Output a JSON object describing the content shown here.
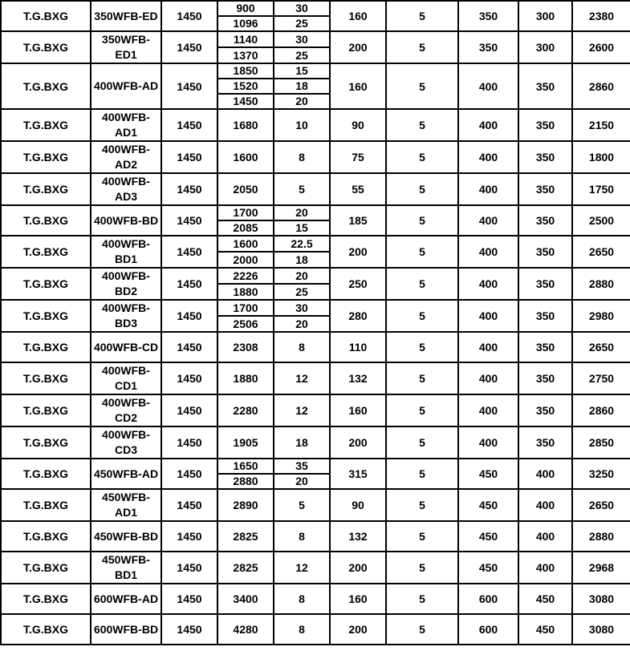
{
  "table": {
    "rows": [
      {
        "brand": "T.G.BXG",
        "model": "350WFB-ED",
        "speed": "1450",
        "flow_head": [
          [
            "900",
            "30"
          ],
          [
            "1096",
            "25"
          ]
        ],
        "power": "160",
        "col6": "5",
        "col7": "350",
        "col8": "300",
        "col9": "2380"
      },
      {
        "brand": "T.G.BXG",
        "model": "350WFB-ED1",
        "speed": "1450",
        "flow_head": [
          [
            "1140",
            "30"
          ],
          [
            "1370",
            "25"
          ]
        ],
        "power": "200",
        "col6": "5",
        "col7": "350",
        "col8": "300",
        "col9": "2600"
      },
      {
        "brand": "T.G.BXG",
        "model": "400WFB-AD",
        "speed": "1450",
        "flow_head": [
          [
            "1850",
            "15"
          ],
          [
            "1520",
            "18"
          ],
          [
            "1450",
            "20"
          ]
        ],
        "power": "160",
        "col6": "5",
        "col7": "400",
        "col8": "350",
        "col9": "2860"
      },
      {
        "brand": "T.G.BXG",
        "model": "400WFB-AD1",
        "speed": "1450",
        "flow_head": [
          [
            "1680",
            "10"
          ]
        ],
        "power": "90",
        "col6": "5",
        "col7": "400",
        "col8": "350",
        "col9": "2150"
      },
      {
        "brand": "T.G.BXG",
        "model": "400WFB-AD2",
        "speed": "1450",
        "flow_head": [
          [
            "1600",
            "8"
          ]
        ],
        "power": "75",
        "col6": "5",
        "col7": "400",
        "col8": "350",
        "col9": "1800"
      },
      {
        "brand": "T.G.BXG",
        "model": "400WFB-AD3",
        "speed": "1450",
        "flow_head": [
          [
            "2050",
            "5"
          ]
        ],
        "power": "55",
        "col6": "5",
        "col7": "400",
        "col8": "350",
        "col9": "1750"
      },
      {
        "brand": "T.G.BXG",
        "model": "400WFB-BD",
        "speed": "1450",
        "flow_head": [
          [
            "1700",
            "20"
          ],
          [
            "2085",
            "15"
          ]
        ],
        "power": "185",
        "col6": "5",
        "col7": "400",
        "col8": "350",
        "col9": "2500"
      },
      {
        "brand": "T.G.BXG",
        "model": "400WFB-BD1",
        "speed": "1450",
        "flow_head": [
          [
            "1600",
            "22.5"
          ],
          [
            "2000",
            "18"
          ]
        ],
        "power": "200",
        "col6": "5",
        "col7": "400",
        "col8": "350",
        "col9": "2650"
      },
      {
        "brand": "T.G.BXG",
        "model": "400WFB-BD2",
        "speed": "1450",
        "flow_head": [
          [
            "2226",
            "20"
          ],
          [
            "1880",
            "25"
          ]
        ],
        "power": "250",
        "col6": "5",
        "col7": "400",
        "col8": "350",
        "col9": "2880"
      },
      {
        "brand": "T.G.BXG",
        "model": "400WFB-BD3",
        "speed": "1450",
        "flow_head": [
          [
            "1700",
            "30"
          ],
          [
            "2506",
            "20"
          ]
        ],
        "power": "280",
        "col6": "5",
        "col7": "400",
        "col8": "350",
        "col9": "2980"
      },
      {
        "brand": "T.G.BXG",
        "model": "400WFB-CD",
        "speed": "1450",
        "flow_head": [
          [
            "2308",
            "8"
          ]
        ],
        "power": "110",
        "col6": "5",
        "col7": "400",
        "col8": "350",
        "col9": "2650"
      },
      {
        "brand": "T.G.BXG",
        "model": "400WFB-CD1",
        "speed": "1450",
        "flow_head": [
          [
            "1880",
            "12"
          ]
        ],
        "power": "132",
        "col6": "5",
        "col7": "400",
        "col8": "350",
        "col9": "2750"
      },
      {
        "brand": "T.G.BXG",
        "model": "400WFB-CD2",
        "speed": "1450",
        "flow_head": [
          [
            "2280",
            "12"
          ]
        ],
        "power": "160",
        "col6": "5",
        "col7": "400",
        "col8": "350",
        "col9": "2860"
      },
      {
        "brand": "T.G.BXG",
        "model": "400WFB-CD3",
        "speed": "1450",
        "flow_head": [
          [
            "1905",
            "18"
          ]
        ],
        "power": "200",
        "col6": "5",
        "col7": "400",
        "col8": "350",
        "col9": "2850"
      },
      {
        "brand": "T.G.BXG",
        "model": "450WFB-AD",
        "speed": "1450",
        "flow_head": [
          [
            "1650",
            "35"
          ],
          [
            "2880",
            "20"
          ]
        ],
        "power": "315",
        "col6": "5",
        "col7": "450",
        "col8": "400",
        "col9": "3250"
      },
      {
        "brand": "T.G.BXG",
        "model": "450WFB-AD1",
        "speed": "1450",
        "flow_head": [
          [
            "2890",
            "5"
          ]
        ],
        "power": "90",
        "col6": "5",
        "col7": "450",
        "col8": "400",
        "col9": "2650"
      },
      {
        "brand": "T.G.BXG",
        "model": "450WFB-BD",
        "speed": "1450",
        "flow_head": [
          [
            "2825",
            "8"
          ]
        ],
        "power": "132",
        "col6": "5",
        "col7": "450",
        "col8": "400",
        "col9": "2880"
      },
      {
        "brand": "T.G.BXG",
        "model": "450WFB-BD1",
        "speed": "1450",
        "flow_head": [
          [
            "2825",
            "12"
          ]
        ],
        "power": "200",
        "col6": "5",
        "col7": "450",
        "col8": "400",
        "col9": "2968"
      },
      {
        "brand": "T.G.BXG",
        "model": "600WFB-AD",
        "speed": "1450",
        "flow_head": [
          [
            "3400",
            "8"
          ]
        ],
        "power": "160",
        "col6": "5",
        "col7": "600",
        "col8": "450",
        "col9": "3080"
      },
      {
        "brand": "T.G.BXG",
        "model": "600WFB-BD",
        "speed": "1450",
        "flow_head": [
          [
            "4280",
            "8"
          ]
        ],
        "power": "200",
        "col6": "5",
        "col7": "600",
        "col8": "450",
        "col9": "3080"
      }
    ]
  }
}
